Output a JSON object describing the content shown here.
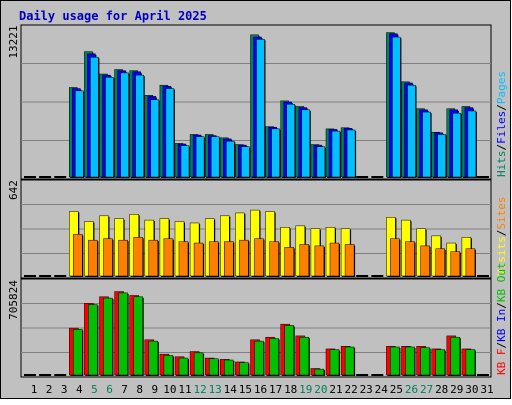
{
  "chart_data": {
    "type": "bar",
    "title": "Daily usage for April 2025",
    "categories": [
      "1",
      "2",
      "3",
      "4",
      "5",
      "6",
      "7",
      "8",
      "9",
      "10",
      "11",
      "12",
      "13",
      "14",
      "15",
      "16",
      "17",
      "18",
      "19",
      "20",
      "21",
      "22",
      "23",
      "24",
      "25",
      "26",
      "27",
      "28",
      "29",
      "30",
      "31"
    ],
    "weekend_days": [
      "5",
      "6",
      "12",
      "13",
      "19",
      "20",
      "26",
      "27"
    ],
    "panels": [
      {
        "id": "hits",
        "scale_label": "13221",
        "ymax": 13221,
        "right_labels": [
          {
            "text": "Hits",
            "color": "#00805c"
          },
          {
            "text": "/",
            "color": "#000000"
          },
          {
            "text": "Files",
            "color": "#0000ff"
          },
          {
            "text": "/",
            "color": "#000000"
          },
          {
            "text": "Pages",
            "color": "#00c0ff"
          }
        ],
        "series": [
          {
            "name": "Hits",
            "color": "#00805c",
            "values": [
              0,
              0,
              0,
              8000,
              11200,
              9200,
              9600,
              9500,
              7300,
              8200,
              3000,
              3800,
              3800,
              3500,
              2900,
              12700,
              4500,
              6800,
              6300,
              2900,
              4300,
              4400,
              0,
              0,
              12900,
              8500,
              6100,
              4000,
              6100,
              6300,
              0
            ]
          },
          {
            "name": "Files",
            "color": "#0000ff",
            "values": [
              0,
              0,
              0,
              7900,
              11000,
              9100,
              9500,
              9400,
              7200,
              8100,
              2950,
              3750,
              3700,
              3400,
              2850,
              12500,
              4450,
              6700,
              6200,
              2850,
              4250,
              4350,
              0,
              0,
              12800,
              8400,
              6000,
              3950,
              6000,
              6200,
              0
            ]
          },
          {
            "name": "Pages",
            "color": "#00c0ff",
            "values": [
              0,
              0,
              0,
              7700,
              10700,
              8900,
              9300,
              9100,
              6900,
              7900,
              2800,
              3600,
              3600,
              3200,
              2700,
              12300,
              4300,
              6500,
              6000,
              2700,
              4100,
              4200,
              0,
              0,
              12500,
              8200,
              5800,
              3800,
              5700,
              5900,
              0
            ]
          }
        ]
      },
      {
        "id": "visits",
        "scale_label": "642",
        "ymax": 642,
        "right_labels": [
          {
            "text": "Visits",
            "color": "#ffff00"
          },
          {
            "text": "/",
            "color": "#000000"
          },
          {
            "text": "Sites",
            "color": "#ff8000"
          }
        ],
        "series": [
          {
            "name": "Visits",
            "color": "#ffff00",
            "values": [
              0,
              0,
              0,
              450,
              380,
              420,
              400,
              430,
              390,
              400,
              380,
              370,
              400,
              420,
              440,
              460,
              450,
              340,
              350,
              330,
              340,
              330,
              0,
              0,
              410,
              390,
              330,
              280,
              230,
              270,
              0
            ]
          },
          {
            "name": "Sites",
            "color": "#ff8000",
            "values": [
              0,
              0,
              0,
              290,
              250,
              260,
              250,
              270,
              250,
              260,
              240,
              230,
              240,
              240,
              250,
              260,
              240,
              200,
              220,
              210,
              230,
              220,
              0,
              0,
              260,
              240,
              210,
              190,
              170,
              190,
              0
            ]
          }
        ]
      },
      {
        "id": "kbytes",
        "scale_label": "705824",
        "ymax": 705824,
        "right_labels": [
          {
            "text": "KB F",
            "color": "#ff0000"
          },
          {
            "text": "/",
            "color": "#000000"
          },
          {
            "text": "KB In",
            "color": "#0000ff"
          },
          {
            "text": "/",
            "color": "#000000"
          },
          {
            "text": "KB Out",
            "color": "#00c000"
          }
        ],
        "series": [
          {
            "name": "KB F",
            "color": "#ff0000",
            "values": [
              0,
              0,
              0,
              360000,
              550000,
              600000,
              640000,
              610000,
              270000,
              160000,
              140000,
              180000,
              130000,
              120000,
              100000,
              270000,
              290000,
              390000,
              300000,
              50000,
              200000,
              220000,
              0,
              0,
              220000,
              220000,
              220000,
              200000,
              300000,
              200000,
              0
            ]
          },
          {
            "name": "KB Out",
            "color": "#00c000",
            "values": [
              0,
              0,
              0,
              350000,
              540000,
              590000,
              630000,
              600000,
              260000,
              150000,
              130000,
              170000,
              125000,
              115000,
              95000,
              260000,
              280000,
              380000,
              290000,
              45000,
              195000,
              215000,
              0,
              0,
              215000,
              215000,
              210000,
              195000,
              290000,
              195000,
              0
            ]
          }
        ]
      }
    ]
  }
}
